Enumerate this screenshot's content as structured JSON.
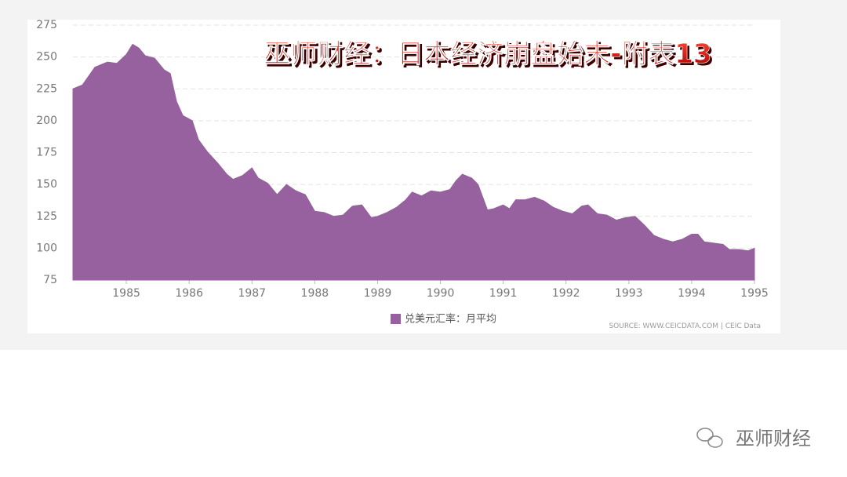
{
  "chart_data": {
    "type": "area",
    "title": "巫师财经：日本经济崩盘始末-附表13",
    "source": "SOURCE: WWW.CEICDATA.COM | CEIC Data",
    "watermark": "巫师财经",
    "x": [
      1984.15,
      1984.3,
      1984.5,
      1984.7,
      1984.85,
      1985.0,
      1985.1,
      1985.2,
      1985.3,
      1985.45,
      1985.6,
      1985.7,
      1985.8,
      1985.9,
      1986.05,
      1986.15,
      1986.3,
      1986.45,
      1986.6,
      1986.7,
      1986.85,
      1987.0,
      1987.1,
      1987.25,
      1987.4,
      1987.55,
      1987.7,
      1987.85,
      1988.0,
      1988.15,
      1988.3,
      1988.45,
      1988.6,
      1988.75,
      1988.9,
      1989.0,
      1989.15,
      1989.3,
      1989.45,
      1989.55,
      1989.7,
      1989.85,
      1990.0,
      1990.15,
      1990.25,
      1990.35,
      1990.5,
      1990.6,
      1990.75,
      1990.85,
      1991.0,
      1991.1,
      1991.2,
      1991.35,
      1991.5,
      1991.65,
      1991.8,
      1991.95,
      1992.1,
      1992.25,
      1992.35,
      1992.5,
      1992.65,
      1992.8,
      1992.95,
      1993.1,
      1993.25,
      1993.4,
      1993.55,
      1993.7,
      1993.85,
      1994.0,
      1994.1,
      1994.2,
      1994.35,
      1994.5,
      1994.6,
      1994.75,
      1994.9,
      1995.0
    ],
    "series": [
      {
        "name": "兑美元汇率：月平均",
        "color": "#97609f",
        "values": [
          225,
          228,
          242,
          246,
          245,
          252,
          260,
          257,
          251,
          249,
          240,
          237,
          215,
          204,
          200,
          185,
          175,
          167,
          158,
          154,
          157,
          163,
          155,
          151,
          142,
          150,
          145,
          142,
          129,
          128,
          125,
          126,
          133,
          134,
          124,
          125,
          128,
          132,
          138,
          144,
          141,
          145,
          144,
          146,
          153,
          158,
          155,
          150,
          130,
          131,
          134,
          131,
          138,
          138,
          140,
          137,
          132,
          129,
          127,
          133,
          134,
          127,
          126,
          122,
          124,
          125,
          118,
          110,
          107,
          105,
          107,
          111,
          111,
          105,
          104,
          103,
          99,
          99,
          98,
          100
        ]
      }
    ],
    "xlim": [
      1984.15,
      1995.0
    ],
    "xticks": [
      1985,
      1986,
      1987,
      1988,
      1989,
      1990,
      1991,
      1992,
      1993,
      1994,
      1995
    ],
    "ylim": [
      75,
      275
    ],
    "yticks": [
      75,
      100,
      125,
      150,
      175,
      200,
      225,
      250,
      275
    ],
    "grid": true
  }
}
